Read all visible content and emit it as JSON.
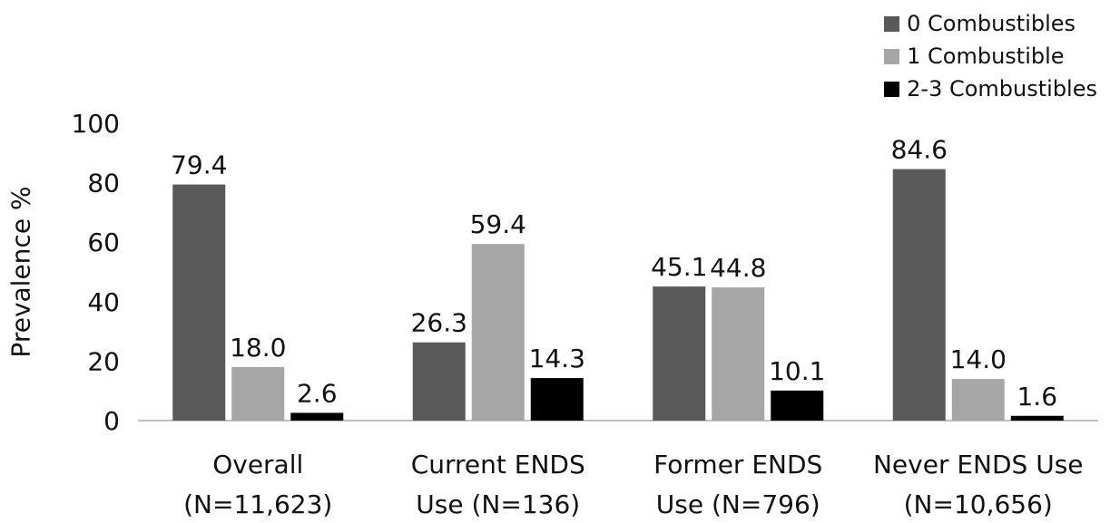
{
  "chart_data": {
    "type": "bar",
    "title": "",
    "xlabel": "",
    "ylabel": "Prevalence %",
    "ylim": [
      0,
      100
    ],
    "yticks": [
      "0",
      "20",
      "40",
      "60",
      "80",
      "100"
    ],
    "grid": false,
    "legend_position": "top-right",
    "categories": [
      [
        "Overall",
        "(N=11,623)"
      ],
      [
        "Current ENDS",
        "Use (N=136)"
      ],
      [
        "Former ENDS",
        "Use (N=796)"
      ],
      [
        "Never ENDS Use",
        "(N=10,656)"
      ]
    ],
    "series": [
      {
        "name": "0 Combustibles",
        "color": "#595959",
        "values": [
          79.4,
          26.3,
          45.1,
          84.6
        ],
        "labels": [
          "79.4",
          "26.3",
          "45.1",
          "84.6"
        ]
      },
      {
        "name": "1 Combustible",
        "color": "#a6a6a6",
        "values": [
          18.0,
          59.4,
          44.8,
          14.0
        ],
        "labels": [
          "18.0",
          "59.4",
          "44.8",
          "14.0"
        ]
      },
      {
        "name": "2-3 Combustibles",
        "color": "#000000",
        "values": [
          2.6,
          14.3,
          10.1,
          1.6
        ],
        "labels": [
          "2.6",
          "14.3",
          "10.1",
          "1.6"
        ]
      }
    ]
  }
}
